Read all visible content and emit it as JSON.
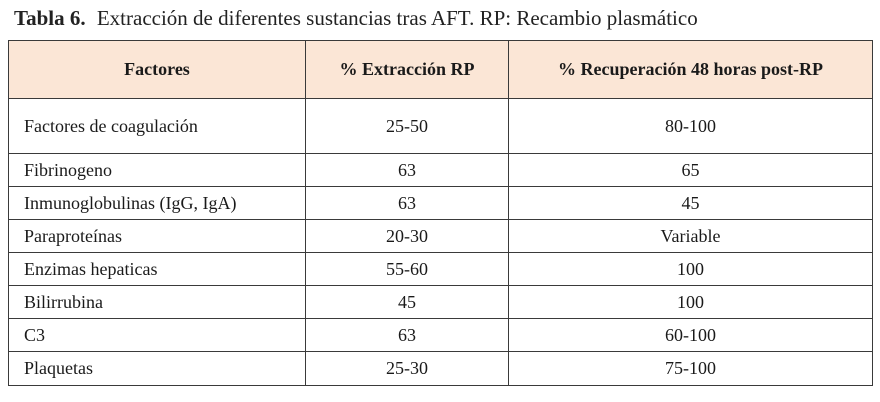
{
  "caption": {
    "label": "Tabla 6.",
    "text": "Extracción de diferentes sustancias tras AFT. RP: Recambio plasmático"
  },
  "table": {
    "headers": [
      "Factores",
      "% Extracción RP",
      "% Recuperación 48 horas post-RP"
    ],
    "rows": [
      [
        "Factores de coagulación",
        "25-50",
        "80-100"
      ],
      [
        "Fibrinogeno",
        "63",
        "65"
      ],
      [
        "Inmunoglobulinas (IgG, IgA)",
        "63",
        "45"
      ],
      [
        "Paraproteínas",
        "20-30",
        "Variable"
      ],
      [
        "Enzimas hepaticas",
        "55-60",
        "100"
      ],
      [
        "Bilirrubina",
        "45",
        "100"
      ],
      [
        "C3",
        "63",
        "60-100"
      ],
      [
        "Plaquetas",
        "25-30",
        "75-100"
      ]
    ]
  },
  "colors": {
    "header_background": "#fbe6d6",
    "border": "#3a3a3a",
    "text": "#1a1a1a"
  }
}
